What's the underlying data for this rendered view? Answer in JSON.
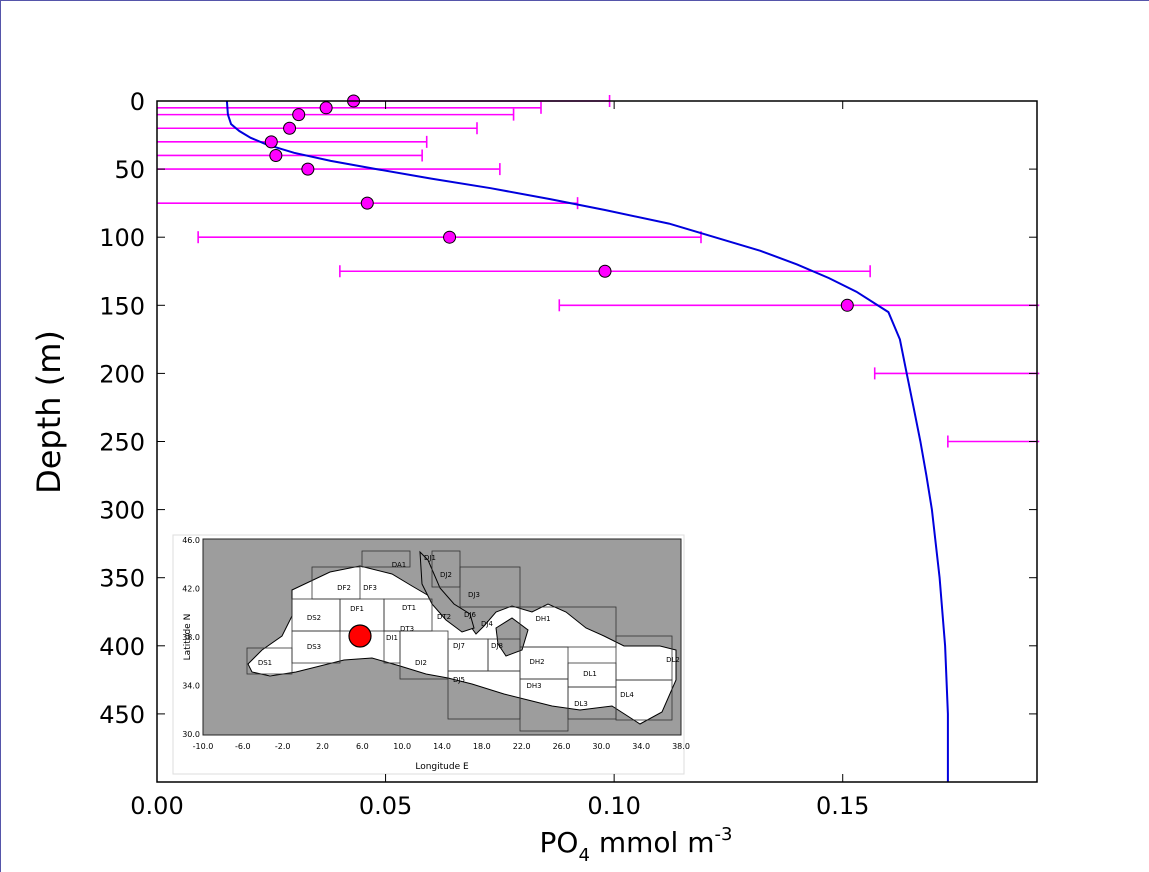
{
  "chart_data": {
    "type": "scatter",
    "xlabel_main": "PO",
    "xlabel_sub": "4",
    "xlabel_unit": " mmol m",
    "xlabel_sup": "-3",
    "ylabel": "Depth (m)",
    "xlim": [
      0.0,
      0.1925
    ],
    "ylim": [
      0,
      500
    ],
    "y_inverted": true,
    "xticks": [
      "0.00",
      "0.05",
      "0.10",
      "0.15"
    ],
    "xtick_values": [
      0.0,
      0.05,
      0.1,
      0.15
    ],
    "yticks": [
      "0",
      "50",
      "100",
      "150",
      "200",
      "250",
      "300",
      "350",
      "400",
      "450"
    ],
    "ytick_values": [
      0,
      50,
      100,
      150,
      200,
      250,
      300,
      350,
      400,
      450
    ],
    "series": [
      {
        "kind": "observations",
        "color": "#ff00ff",
        "points": [
          {
            "depth": 0,
            "x": 0.043,
            "lo": null,
            "hi": 0.099
          },
          {
            "depth": 5,
            "x": 0.037,
            "lo": 0.0,
            "hi": 0.084
          },
          {
            "depth": 10,
            "x": 0.031,
            "lo": 0.0,
            "hi": 0.078
          },
          {
            "depth": 20,
            "x": 0.029,
            "lo": 0.0,
            "hi": 0.07
          },
          {
            "depth": 30,
            "x": 0.025,
            "lo": 0.0,
            "hi": 0.059
          },
          {
            "depth": 40,
            "x": 0.026,
            "lo": 0.0,
            "hi": 0.058
          },
          {
            "depth": 50,
            "x": 0.033,
            "lo": 0.0,
            "hi": 0.075
          },
          {
            "depth": 75,
            "x": 0.046,
            "lo": 0.0,
            "hi": 0.092
          },
          {
            "depth": 100,
            "x": 0.064,
            "lo": 0.009,
            "hi": 0.119
          },
          {
            "depth": 125,
            "x": 0.098,
            "lo": 0.04,
            "hi": 0.156
          },
          {
            "depth": 150,
            "x": 0.151,
            "lo": 0.088,
            "hi": 0.193
          },
          {
            "depth": 200,
            "x": null,
            "lo": 0.157,
            "hi": 0.193
          },
          {
            "depth": 250,
            "x": null,
            "lo": 0.173,
            "hi": 0.193
          }
        ]
      },
      {
        "kind": "model",
        "color": "#0000dd",
        "points": [
          {
            "depth": 0,
            "x": 0.0153
          },
          {
            "depth": 10,
            "x": 0.0155
          },
          {
            "depth": 17,
            "x": 0.0162
          },
          {
            "depth": 22,
            "x": 0.018
          },
          {
            "depth": 27,
            "x": 0.0205
          },
          {
            "depth": 32,
            "x": 0.024
          },
          {
            "depth": 38,
            "x": 0.03
          },
          {
            "depth": 44,
            "x": 0.038
          },
          {
            "depth": 50,
            "x": 0.048
          },
          {
            "depth": 57,
            "x": 0.06
          },
          {
            "depth": 64,
            "x": 0.073
          },
          {
            "depth": 72,
            "x": 0.086
          },
          {
            "depth": 80,
            "x": 0.098
          },
          {
            "depth": 90,
            "x": 0.112
          },
          {
            "depth": 100,
            "x": 0.122
          },
          {
            "depth": 110,
            "x": 0.132
          },
          {
            "depth": 120,
            "x": 0.14
          },
          {
            "depth": 130,
            "x": 0.147
          },
          {
            "depth": 140,
            "x": 0.153
          },
          {
            "depth": 155,
            "x": 0.16
          },
          {
            "depth": 175,
            "x": 0.1625
          },
          {
            "depth": 200,
            "x": 0.164
          },
          {
            "depth": 225,
            "x": 0.1655
          },
          {
            "depth": 250,
            "x": 0.167
          },
          {
            "depth": 275,
            "x": 0.1683
          },
          {
            "depth": 300,
            "x": 0.1695
          },
          {
            "depth": 350,
            "x": 0.1712
          },
          {
            "depth": 400,
            "x": 0.1724
          },
          {
            "depth": 450,
            "x": 0.173
          },
          {
            "depth": 500,
            "x": 0.173
          }
        ]
      }
    ],
    "inset_map": {
      "lat_ticks": [
        "46.0",
        "42.0",
        "38.0",
        "34.0",
        "30.0"
      ],
      "lon_ticks": [
        "-10.0",
        "-6.0",
        "-2.0",
        "2.0",
        "6.0",
        "10.0",
        "14.0",
        "18.0",
        "22.0",
        "26.0",
        "30.0",
        "34.0",
        "38.0"
      ],
      "lat_label": "Latitude N",
      "lon_label": "Longitude E",
      "regions": [
        "DJ1",
        "DA1",
        "DJ2",
        "DF2",
        "DF3",
        "DJ3",
        "DT1",
        "DF1",
        "DT2",
        "DJ6",
        "DJ4",
        "DS2",
        "DT3",
        "DH1",
        "DI1",
        "DS3",
        "DJ7",
        "DJ8",
        "DI2",
        "DH2",
        "DL2",
        "DS1",
        "DL1",
        "DJ5",
        "DH3",
        "DL4",
        "DL3"
      ],
      "marker_color": "#ff0000"
    }
  }
}
